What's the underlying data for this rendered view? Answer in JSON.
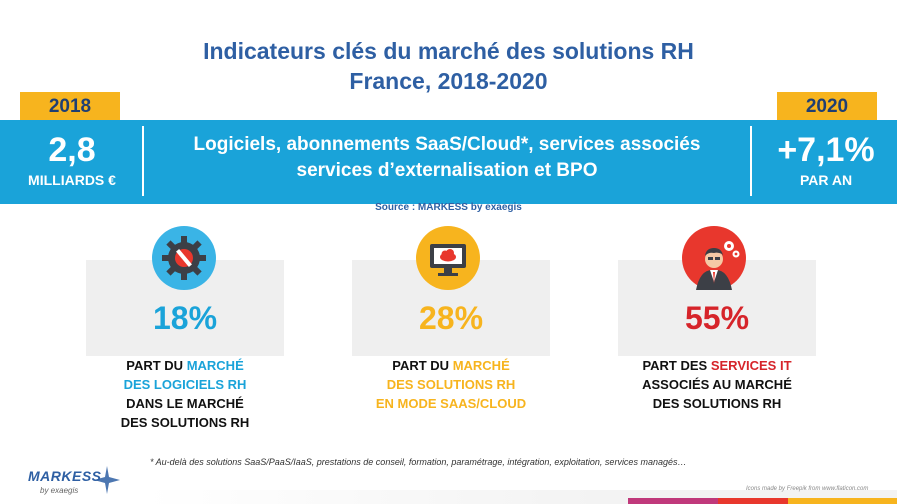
{
  "title": {
    "line1": "Indicateurs clés du marché des solutions RH",
    "line2": "France, 2018-2020"
  },
  "left_stat": {
    "year": "2018",
    "value": "2,8",
    "unit": "MILLIARDS €"
  },
  "right_stat": {
    "year": "2020",
    "value": "+7,1%",
    "unit": "PAR AN"
  },
  "band": {
    "line1": "Logiciels, abonnements SaaS/Cloud*, services associés",
    "line2": "services d’externalisation et  BPO"
  },
  "source": "Source : MARKESS by exaegis",
  "cards": [
    {
      "icon": "gear-wrench-icon",
      "percent": "18%",
      "pre": "PART DU ",
      "hl1": "MARCHÉ",
      "hl2": "DES LOGICIELS RH",
      "post1": "DANS LE MARCHÉ",
      "post2": "DES SOLUTIONS RH"
    },
    {
      "icon": "cloud-monitor-icon",
      "percent": "28%",
      "pre": "PART DU ",
      "hl1": "MARCHÉ",
      "hl2": "DES SOLUTIONS RH",
      "post1": "EN MODE SAAS/CLOUD"
    },
    {
      "icon": "consultant-gears-icon",
      "percent": "55%",
      "pre": "PART DES ",
      "hl1": "SERVICES IT",
      "post1": "ASSOCIÉS AU MARCHÉ",
      "post2": "DES SOLUTIONS RH"
    }
  ],
  "footnote": "* Au-delà des solutions SaaS/PaaS/IaaS,  prestations de conseil, formation, paramétrage, intégration, exploitation, services managés…",
  "logo": {
    "name": "MARKESS",
    "sub": "by exaegis"
  },
  "credit": "Icons made by Freepik from www.flaticon.com",
  "colors": {
    "blue": "#1aa3d9",
    "yellow": "#f7b41e",
    "red": "#d6242a",
    "title": "#2e5fa3"
  }
}
